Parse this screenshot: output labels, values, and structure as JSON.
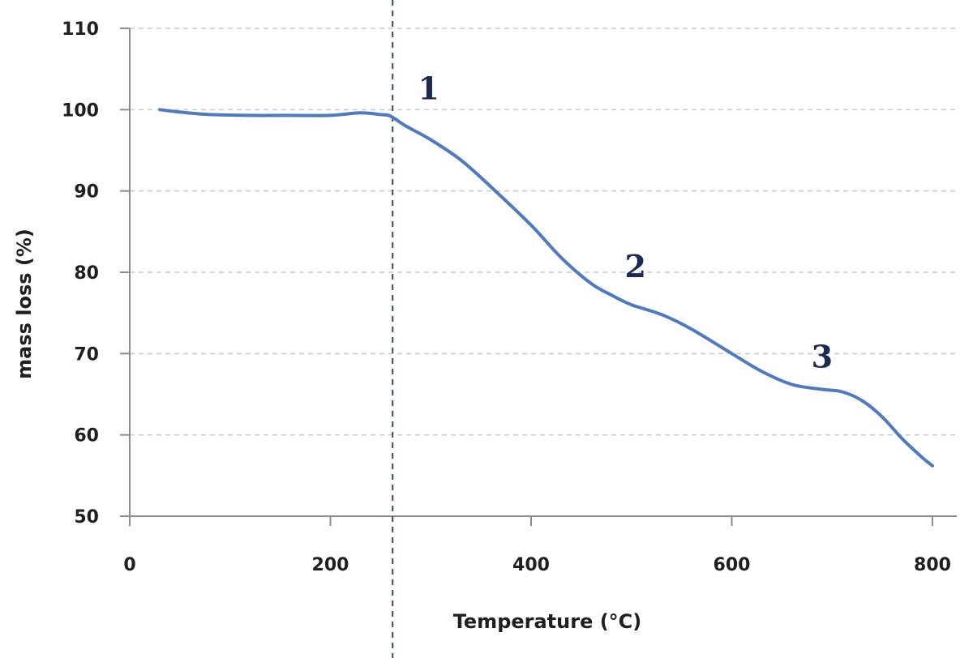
{
  "chart_data": {
    "type": "line",
    "title": "",
    "xlabel": "Temperature (°C)",
    "ylabel": "mass loss (%)",
    "xlim": [
      0,
      830
    ],
    "ylim": [
      50,
      110
    ],
    "x_ticks": [
      0,
      200,
      400,
      600,
      800
    ],
    "y_ticks": [
      50,
      60,
      70,
      80,
      90,
      100,
      110
    ],
    "grid": true,
    "series": [
      {
        "name": "mass loss",
        "color": "#4f7ac0",
        "x": [
          30,
          50,
          80,
          120,
          160,
          200,
          230,
          250,
          260,
          275,
          300,
          330,
          360,
          400,
          430,
          460,
          480,
          500,
          530,
          560,
          600,
          630,
          660,
          690,
          710,
          730,
          750,
          770,
          790,
          800
        ],
        "y": [
          100,
          99.7,
          99.4,
          99.3,
          99.3,
          99.3,
          99.6,
          99.4,
          99.2,
          98.0,
          96.3,
          93.8,
          90.5,
          85.8,
          81.8,
          78.6,
          77.2,
          76.0,
          74.8,
          73.0,
          70.0,
          67.8,
          66.2,
          65.6,
          65.3,
          64.2,
          62.2,
          59.5,
          57.2,
          56.2
        ]
      }
    ],
    "vertical_marker": {
      "x": 262
    },
    "annotations": [
      {
        "text": "1",
        "x": 298,
        "y": 101.3
      },
      {
        "text": "2",
        "x": 504,
        "y": 79.4
      },
      {
        "text": "3",
        "x": 690,
        "y": 68.3
      }
    ]
  }
}
